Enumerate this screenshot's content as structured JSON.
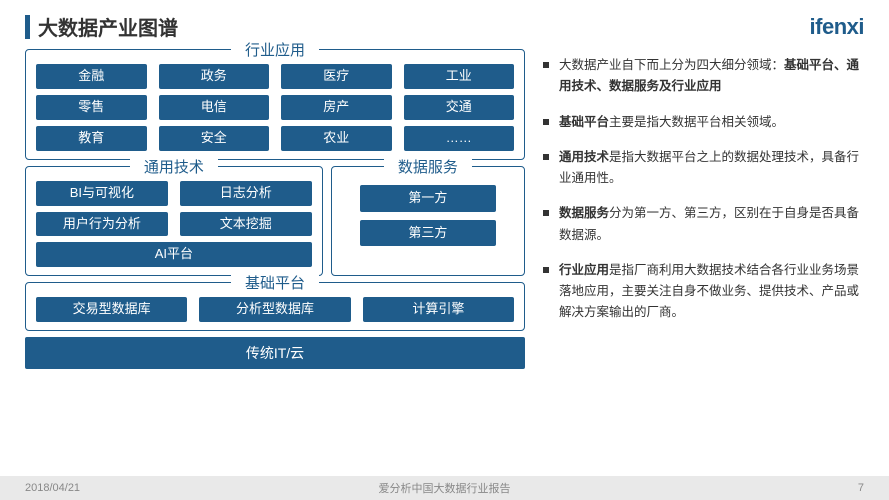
{
  "header": {
    "title": "大数据产业图谱",
    "logo": "ifenxi"
  },
  "colors": {
    "brand": "#1f5c8b",
    "text": "#333333",
    "footer_bg": "#e9e9e9",
    "footer_text": "#888888"
  },
  "layout": {
    "row1": {
      "title": "行业应用",
      "items": [
        "金融",
        "政务",
        "医疗",
        "工业",
        "零售",
        "电信",
        "房产",
        "交通",
        "教育",
        "安全",
        "农业",
        "……"
      ]
    },
    "row2": {
      "tech": {
        "title": "通用技术",
        "items": [
          "BI与可视化",
          "日志分析",
          "用户行为分析",
          "文本挖掘"
        ],
        "wide": "AI平台"
      },
      "svc": {
        "title": "数据服务",
        "items": [
          "第一方",
          "第三方"
        ]
      }
    },
    "row3": {
      "title": "基础平台",
      "items": [
        "交易型数据库",
        "分析型数据库",
        "计算引擎"
      ]
    },
    "row4": {
      "label": "传统IT/云"
    }
  },
  "bullets": [
    {
      "pre": "大数据产业自下而上分为四大细分领域：",
      "bold": "基础平台、通用技术、数据服务及行业应用",
      "post": ""
    },
    {
      "pre": "",
      "bold": "基础平台",
      "post": "主要是指大数据平台相关领域。"
    },
    {
      "pre": "",
      "bold": "通用技术",
      "post": "是指大数据平台之上的数据处理技术，具备行业通用性。"
    },
    {
      "pre": "",
      "bold": "数据服务",
      "post": "分为第一方、第三方，区别在于自身是否具备数据源。"
    },
    {
      "pre": "",
      "bold": "行业应用",
      "post": "是指厂商利用大数据技术结合各行业业务场景落地应用，主要关注自身不做业务、提供技术、产品或解决方案输出的厂商。"
    }
  ],
  "footer": {
    "date": "2018/04/21",
    "center": "爱分析中国大数据行业报告",
    "page": "7"
  }
}
